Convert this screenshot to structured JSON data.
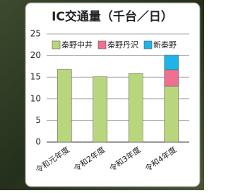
{
  "chart_data": {
    "type": "stacked_bar",
    "title": "IC交通量（千台／日）",
    "categories": [
      "令和元年度",
      "令和2年度",
      "令和3年度",
      "令和4年度"
    ],
    "series": [
      {
        "name": "秦野中井",
        "color": "#b8d77c",
        "values": [
          16.8,
          15.1,
          15.9,
          12.9
        ]
      },
      {
        "name": "秦野丹沢",
        "color": "#f07090",
        "values": [
          null,
          null,
          null,
          3.8
        ]
      },
      {
        "name": "新秦野",
        "color": "#1eb4e8",
        "values": [
          null,
          null,
          null,
          3.4
        ]
      }
    ],
    "ylim": [
      0,
      25
    ],
    "yticks": [
      0,
      5,
      10,
      15,
      20,
      25
    ],
    "grid": true,
    "legend": "top"
  }
}
